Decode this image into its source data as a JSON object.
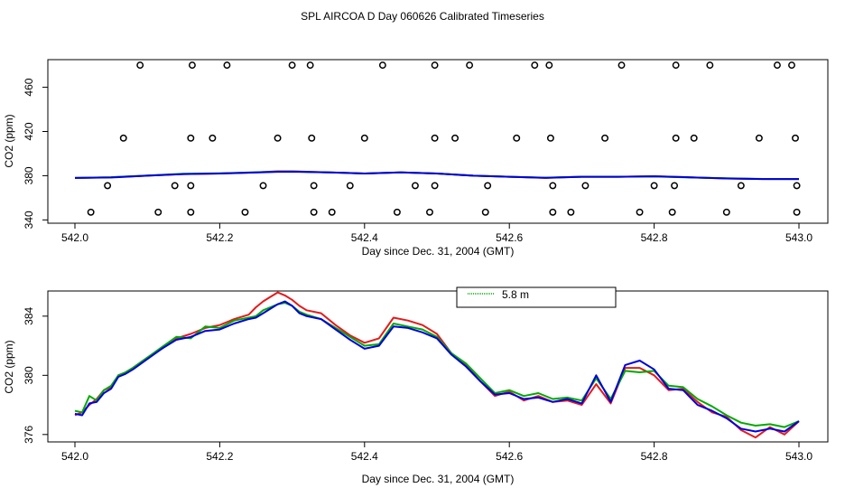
{
  "title": "SPL AIRCOA D  Day 060626  Calibrated Timeseries",
  "chart_data": [
    {
      "type": "scatter",
      "xlabel": "Day since Dec. 31, 2004 (GMT)",
      "ylabel": "CO2 (ppm)",
      "xlim": [
        541.96,
        543.03
      ],
      "ylim": [
        337,
        485
      ],
      "xticks": [
        542.0,
        542.2,
        542.4,
        542.6,
        542.8,
        543.0
      ],
      "xtick_labels": [
        "542.0",
        "542.2",
        "542.4",
        "542.6",
        "542.8",
        "543.0"
      ],
      "yticks": [
        340,
        380,
        420,
        460
      ],
      "ytick_labels": [
        "340",
        "380",
        "420",
        "460"
      ],
      "calibration_points": [
        {
          "name": "high",
          "y": 480,
          "x": [
            542.09,
            542.162,
            542.21,
            542.3,
            542.325,
            542.425,
            542.497,
            542.545,
            542.635,
            542.655,
            542.755,
            542.83,
            542.877,
            542.97,
            542.99
          ]
        },
        {
          "name": "mid",
          "y": 414,
          "x": [
            542.067,
            542.16,
            542.19,
            542.28,
            542.327,
            542.4,
            542.497,
            542.525,
            542.61,
            542.657,
            542.732,
            542.83,
            542.855,
            542.945,
            542.995
          ]
        },
        {
          "name": "low-mid",
          "y": 371,
          "x": [
            542.045,
            542.138,
            542.16,
            542.26,
            542.33,
            542.38,
            542.47,
            542.497,
            542.57,
            542.66,
            542.705,
            542.8,
            542.828,
            542.92,
            542.997
          ]
        },
        {
          "name": "low",
          "y": 347,
          "x": [
            542.022,
            542.115,
            542.16,
            542.235,
            542.33,
            542.355,
            542.445,
            542.49,
            542.567,
            542.66,
            542.685,
            542.78,
            542.825,
            542.9,
            542.997
          ]
        }
      ],
      "series": [
        {
          "name": "red",
          "color": "#e41a1c",
          "x": [
            542.0,
            542.05,
            542.1,
            542.15,
            542.2,
            542.25,
            542.28,
            542.3,
            542.35,
            542.4,
            542.45,
            542.5,
            542.55,
            542.6,
            542.65,
            542.7,
            542.75,
            542.8,
            542.85,
            542.9,
            542.95,
            543.0
          ],
          "values": [
            378,
            378.5,
            380,
            381.5,
            382,
            383,
            384,
            384,
            383,
            382,
            383,
            382,
            380,
            379,
            378,
            379,
            379,
            379.5,
            378.5,
            377.5,
            377,
            377
          ]
        },
        {
          "name": "green",
          "color": "#00aa00",
          "x": [
            542.0,
            542.05,
            542.1,
            542.15,
            542.2,
            542.25,
            542.28,
            542.3,
            542.35,
            542.4,
            542.45,
            542.5,
            542.55,
            542.6,
            542.65,
            542.7,
            542.75,
            542.8,
            542.85,
            542.9,
            542.95,
            543.0
          ],
          "values": [
            378,
            378.6,
            380.2,
            381.7,
            382.1,
            383.1,
            383.7,
            383.8,
            383,
            382,
            383,
            382,
            380,
            379,
            378.2,
            379,
            379,
            379.3,
            378.4,
            377.6,
            377.1,
            377
          ]
        },
        {
          "name": "blue",
          "color": "#0000dd",
          "x": [
            542.0,
            542.05,
            542.1,
            542.15,
            542.2,
            542.25,
            542.28,
            542.3,
            542.35,
            542.4,
            542.45,
            542.5,
            542.55,
            542.6,
            542.65,
            542.7,
            542.75,
            542.8,
            542.85,
            542.9,
            542.95,
            543.0
          ],
          "values": [
            378,
            378.4,
            380,
            381.5,
            382,
            382.9,
            383.5,
            383.6,
            383,
            382,
            383,
            382,
            380,
            379,
            378.1,
            379,
            379,
            379.4,
            378.5,
            377.5,
            377,
            377
          ]
        }
      ]
    },
    {
      "type": "line",
      "xlabel": "Day since Dec. 31, 2004 (GMT)",
      "ylabel": "CO2 (ppm)",
      "xlim": [
        541.96,
        543.03
      ],
      "ylim": [
        375.5,
        385.7
      ],
      "xticks": [
        542.0,
        542.2,
        542.4,
        542.6,
        542.8,
        543.0
      ],
      "xtick_labels": [
        "542.0",
        "542.2",
        "542.4",
        "542.6",
        "542.8",
        "543.0"
      ],
      "yticks": [
        376,
        380,
        384
      ],
      "ytick_labels": [
        "376",
        "380",
        "384"
      ],
      "legend": {
        "position": "top",
        "entries": [
          {
            "label": "5.8 m",
            "color": "#00aa00"
          }
        ]
      },
      "series": [
        {
          "name": "red",
          "color": "#e41a1c",
          "x": [
            542.0,
            542.01,
            542.02,
            542.03,
            542.04,
            542.05,
            542.06,
            542.07,
            542.08,
            542.1,
            542.12,
            542.14,
            542.16,
            542.18,
            542.2,
            542.22,
            542.24,
            542.25,
            542.26,
            542.27,
            542.28,
            542.29,
            542.3,
            542.31,
            542.32,
            542.34,
            542.36,
            542.38,
            542.4,
            542.42,
            542.44,
            542.46,
            542.48,
            542.5,
            542.52,
            542.54,
            542.56,
            542.58,
            542.6,
            542.62,
            542.64,
            542.66,
            542.68,
            542.7,
            542.72,
            542.74,
            542.76,
            542.78,
            542.8,
            542.82,
            542.84,
            542.86,
            542.88,
            542.9,
            542.92,
            542.94,
            542.96,
            542.98,
            543.0
          ],
          "values": [
            377.3,
            377.5,
            378.0,
            378.4,
            379.0,
            379.2,
            380.0,
            380.2,
            380.5,
            381.2,
            381.8,
            382.5,
            382.8,
            383.2,
            383.4,
            383.8,
            384.1,
            384.6,
            385.0,
            385.3,
            385.6,
            385.4,
            385.1,
            384.7,
            384.4,
            384.2,
            383.4,
            382.7,
            382.2,
            382.5,
            383.9,
            383.7,
            383.4,
            382.8,
            381.5,
            380.7,
            379.6,
            378.6,
            378.9,
            378.3,
            378.6,
            378.2,
            378.3,
            378.0,
            379.4,
            378.1,
            380.5,
            380.5,
            380.0,
            379.0,
            379.1,
            378.2,
            377.5,
            377.2,
            376.3,
            375.8,
            376.5,
            376.0,
            376.9
          ]
        },
        {
          "name": "green",
          "color": "#00aa00",
          "x": [
            542.0,
            542.01,
            542.02,
            542.03,
            542.04,
            542.05,
            542.06,
            542.07,
            542.08,
            542.1,
            542.12,
            542.14,
            542.16,
            542.18,
            542.2,
            542.22,
            542.24,
            542.25,
            542.26,
            542.27,
            542.28,
            542.29,
            542.3,
            542.31,
            542.32,
            542.34,
            542.36,
            542.38,
            542.4,
            542.42,
            542.44,
            542.46,
            542.48,
            542.5,
            542.52,
            542.54,
            542.56,
            542.58,
            542.6,
            542.62,
            542.64,
            542.66,
            542.68,
            542.7,
            542.72,
            542.74,
            542.76,
            542.78,
            542.8,
            542.82,
            542.84,
            542.86,
            542.88,
            542.9,
            542.92,
            542.94,
            542.96,
            542.98,
            543.0
          ],
          "values": [
            377.6,
            377.5,
            378.6,
            378.3,
            379.0,
            379.3,
            380.0,
            380.2,
            380.5,
            381.2,
            381.9,
            382.6,
            382.5,
            383.3,
            383.2,
            383.7,
            383.9,
            384.0,
            384.4,
            384.6,
            384.8,
            384.9,
            384.7,
            384.3,
            384.1,
            383.8,
            383.2,
            382.6,
            382.0,
            382.1,
            383.5,
            383.3,
            383.1,
            382.6,
            381.5,
            380.8,
            379.8,
            378.8,
            379.0,
            378.6,
            378.8,
            378.4,
            378.5,
            378.3,
            379.8,
            378.4,
            380.3,
            380.2,
            380.3,
            379.3,
            379.2,
            378.4,
            377.9,
            377.3,
            376.8,
            376.6,
            376.7,
            376.5,
            376.9
          ]
        },
        {
          "name": "blue",
          "color": "#0000dd",
          "x": [
            542.0,
            542.01,
            542.02,
            542.03,
            542.04,
            542.05,
            542.06,
            542.07,
            542.08,
            542.1,
            542.12,
            542.14,
            542.16,
            542.18,
            542.2,
            542.22,
            542.24,
            542.25,
            542.26,
            542.27,
            542.28,
            542.29,
            542.3,
            542.31,
            542.32,
            542.34,
            542.36,
            542.38,
            542.4,
            542.42,
            542.44,
            542.46,
            542.48,
            542.5,
            542.52,
            542.54,
            542.56,
            542.58,
            542.6,
            542.62,
            542.64,
            542.66,
            542.68,
            542.7,
            542.72,
            542.74,
            542.76,
            542.78,
            542.8,
            542.82,
            542.84,
            542.86,
            542.88,
            542.9,
            542.92,
            542.94,
            542.96,
            542.98,
            543.0
          ],
          "values": [
            377.4,
            377.3,
            378.1,
            378.2,
            378.8,
            379.1,
            379.9,
            380.1,
            380.4,
            381.1,
            381.8,
            382.4,
            382.6,
            383.0,
            383.1,
            383.5,
            383.8,
            383.9,
            384.2,
            384.5,
            384.8,
            385.0,
            384.7,
            384.2,
            384.0,
            383.8,
            383.1,
            382.4,
            381.8,
            382.0,
            383.3,
            383.2,
            382.9,
            382.5,
            381.4,
            380.6,
            379.6,
            378.7,
            378.8,
            378.4,
            378.5,
            378.2,
            378.4,
            378.1,
            380.0,
            378.2,
            380.7,
            381.0,
            380.4,
            379.1,
            379.0,
            378.0,
            377.6,
            377.1,
            376.4,
            376.2,
            376.4,
            376.2,
            376.9
          ]
        }
      ]
    }
  ]
}
